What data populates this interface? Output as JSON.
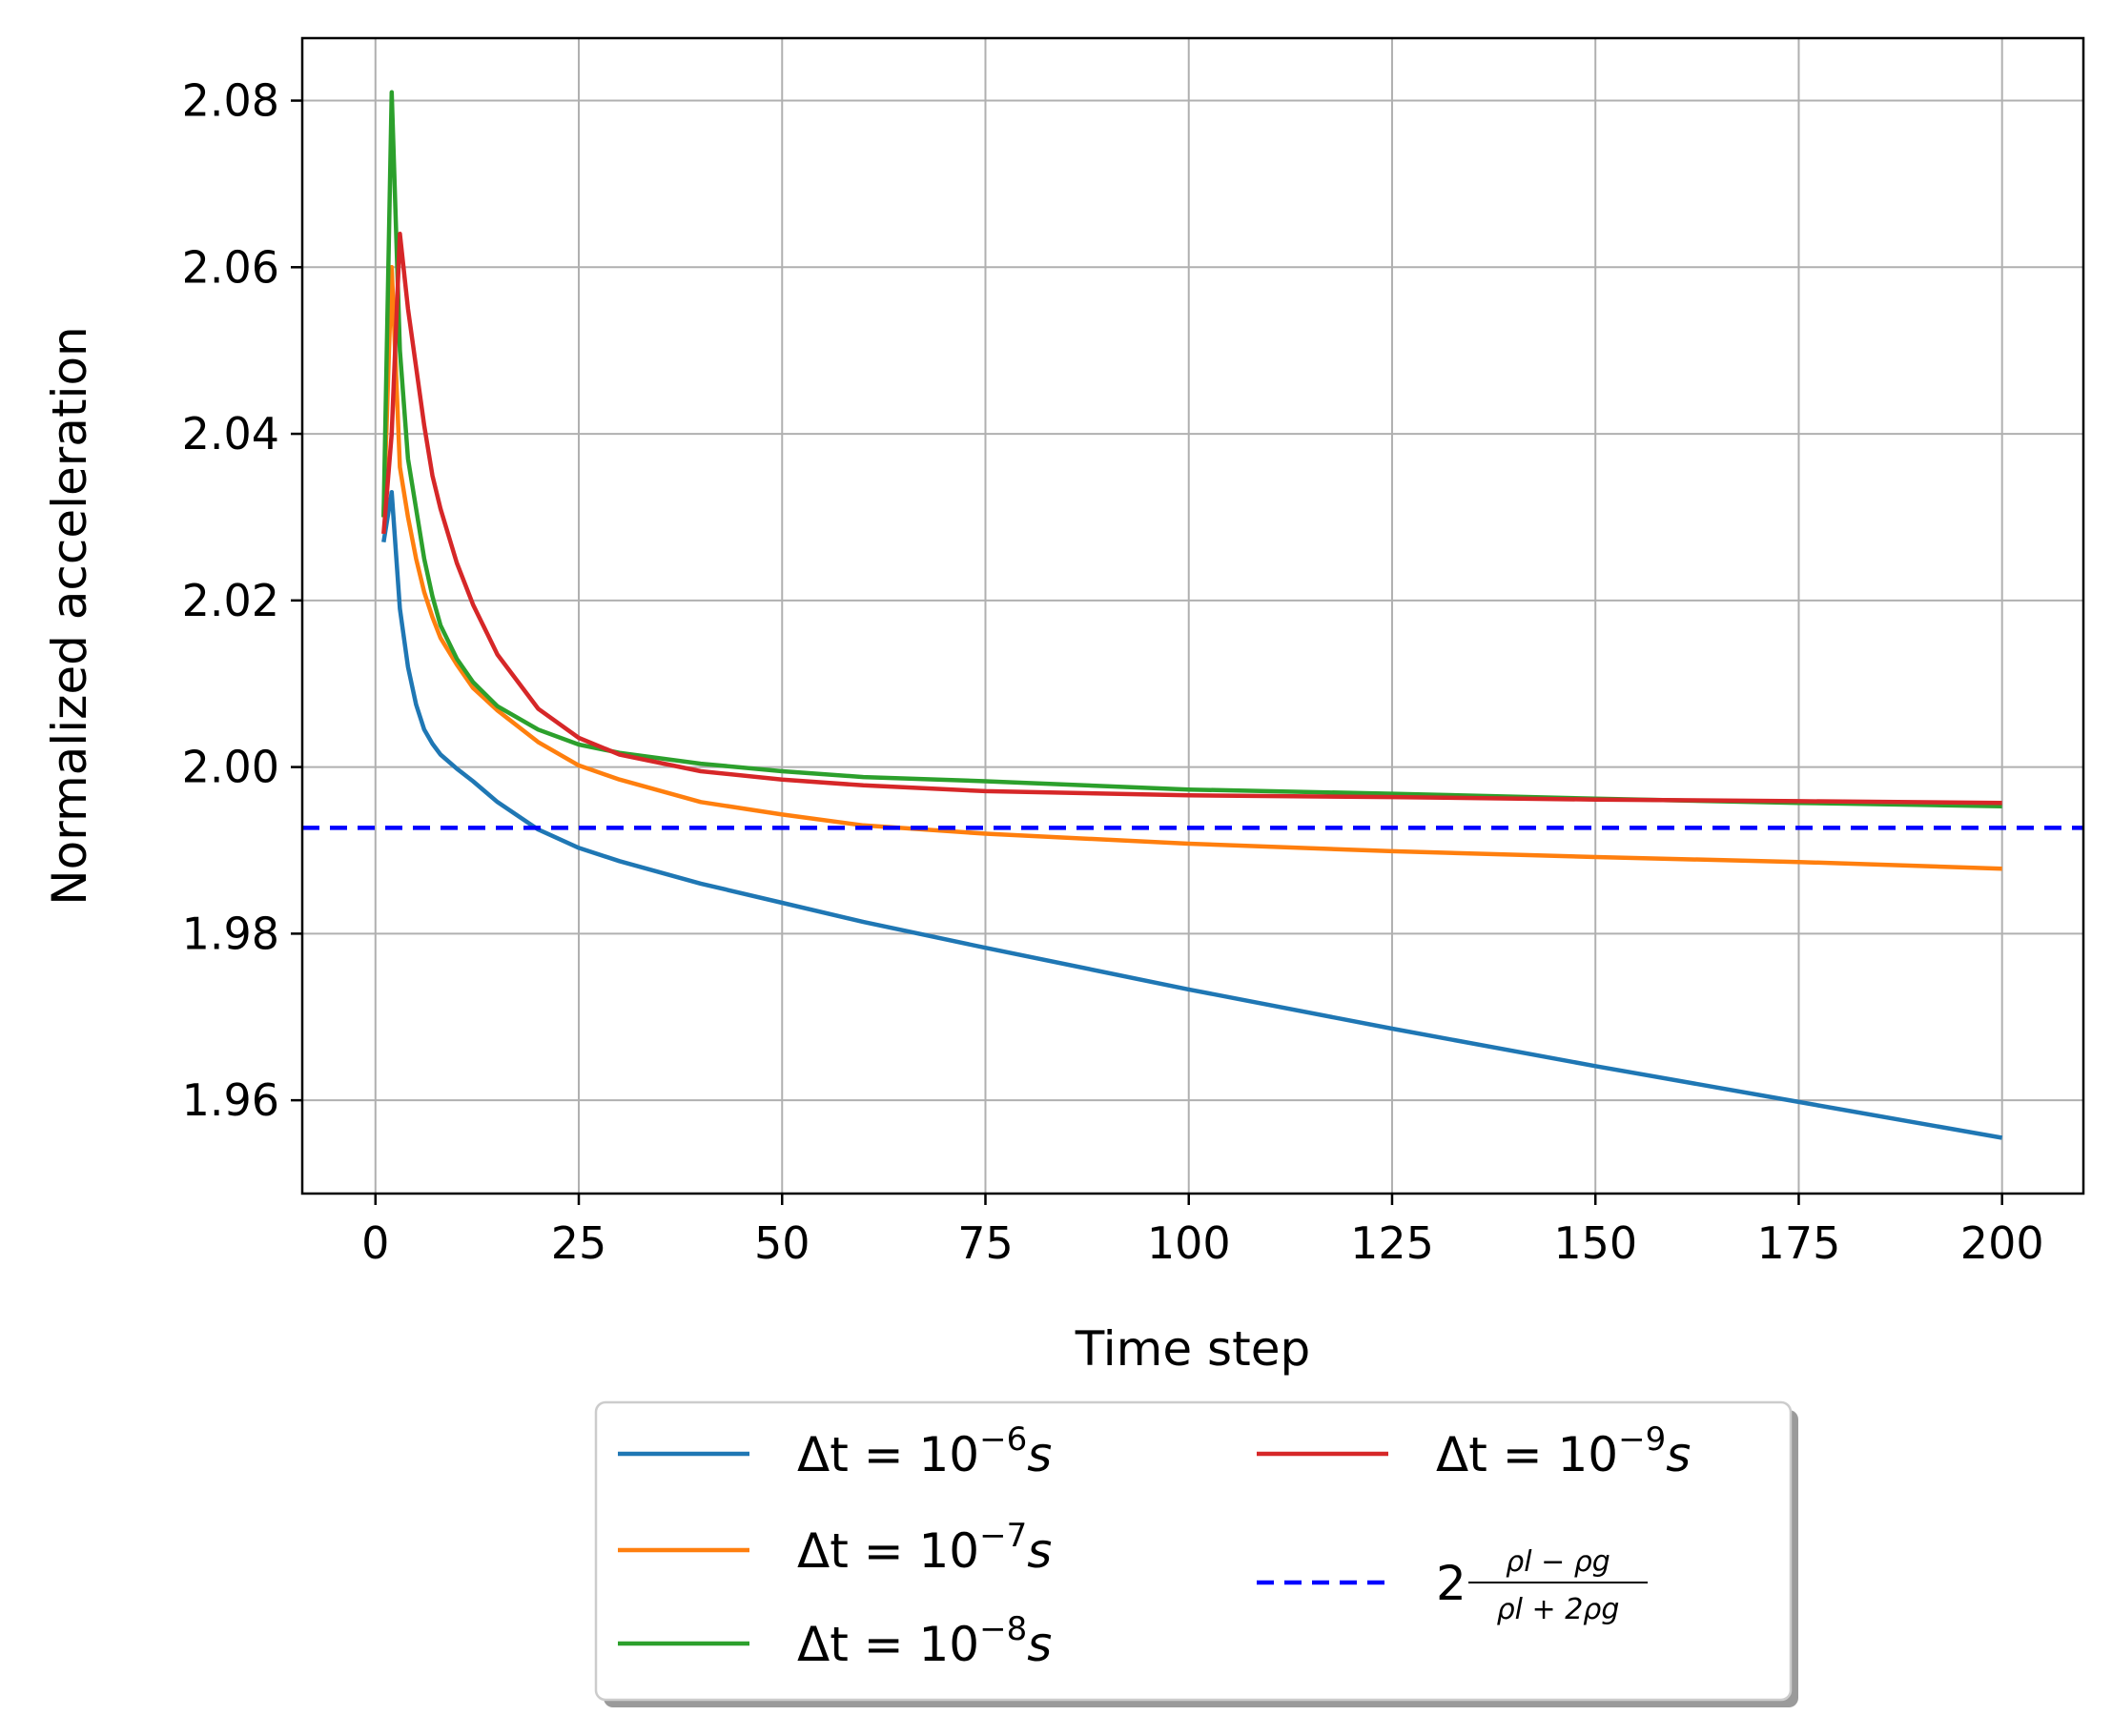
{
  "chart_data": {
    "type": "line",
    "title": "",
    "xlabel": "Time step",
    "ylabel": "Normalized acceleration",
    "xlim": [
      -9,
      210
    ],
    "ylim": [
      1.9488,
      2.0875
    ],
    "xticks": [
      0,
      25,
      50,
      75,
      100,
      125,
      150,
      175,
      200
    ],
    "xtick_labels": [
      "0",
      "25",
      "50",
      "75",
      "100",
      "125",
      "150",
      "175",
      "200"
    ],
    "yticks": [
      1.96,
      1.98,
      2.0,
      2.02,
      2.04,
      2.06,
      2.08
    ],
    "ytick_labels": [
      "1.96",
      "1.98",
      "2.00",
      "2.02",
      "2.04",
      "2.06",
      "2.08"
    ],
    "grid": true,
    "legend_position": "below",
    "series": [
      {
        "legend_label": "Δt = 10^−6 s",
        "legend_prefix": "Δt = 10",
        "legend_exp": "−6",
        "legend_unit": "s",
        "color": "#1f77b4",
        "style": "solid",
        "x": [
          1,
          2,
          3,
          4,
          5,
          6,
          7,
          8,
          10,
          12,
          15,
          20,
          25,
          30,
          40,
          50,
          60,
          75,
          100,
          125,
          150,
          175,
          200
        ],
        "y": [
          2.027,
          2.033,
          2.019,
          2.012,
          2.0075,
          2.0045,
          2.0028,
          2.0015,
          1.9998,
          1.9983,
          1.9958,
          1.9925,
          1.9903,
          1.9887,
          1.986,
          1.9837,
          1.9814,
          1.9783,
          1.9733,
          1.9686,
          1.9641,
          1.9598,
          1.9555
        ]
      },
      {
        "legend_label": "Δt = 10^−7 s",
        "legend_prefix": "Δt = 10",
        "legend_exp": "−7",
        "legend_unit": "s",
        "color": "#ff7f0e",
        "style": "solid",
        "x": [
          1,
          2,
          3,
          4,
          5,
          6,
          7,
          8,
          10,
          12,
          15,
          20,
          25,
          30,
          40,
          50,
          60,
          75,
          100,
          125,
          150,
          175,
          200
        ],
        "y": [
          2.03,
          2.06,
          2.036,
          2.03,
          2.025,
          2.021,
          2.018,
          2.0155,
          2.0123,
          2.0095,
          2.0068,
          2.003,
          2.0002,
          1.9985,
          1.9958,
          1.9943,
          1.993,
          1.992,
          1.9908,
          1.9899,
          1.9892,
          1.9886,
          1.9878
        ]
      },
      {
        "legend_label": "Δt = 10^−8 s",
        "legend_prefix": "Δt = 10",
        "legend_exp": "−8",
        "legend_unit": "s",
        "color": "#2ca02c",
        "style": "solid",
        "x": [
          1,
          2,
          3,
          4,
          5,
          6,
          7,
          8,
          10,
          12,
          15,
          20,
          25,
          30,
          40,
          50,
          60,
          75,
          100,
          125,
          150,
          175,
          200
        ],
        "y": [
          2.03,
          2.081,
          2.05,
          2.037,
          2.031,
          2.025,
          2.0205,
          2.017,
          2.013,
          2.0102,
          2.0073,
          2.0045,
          2.0027,
          2.0017,
          2.0004,
          1.9995,
          1.9988,
          1.9983,
          1.9973,
          1.9968,
          1.9962,
          1.9957,
          1.9953
        ]
      },
      {
        "legend_label": "Δt = 10^−9 s",
        "legend_prefix": "Δt = 10",
        "legend_exp": "−9",
        "legend_unit": "s",
        "color": "#d62728",
        "style": "solid",
        "x": [
          1,
          2,
          3,
          4,
          5,
          6,
          7,
          8,
          10,
          12,
          15,
          20,
          25,
          30,
          40,
          50,
          60,
          75,
          100,
          125,
          150,
          175,
          200
        ],
        "y": [
          2.028,
          2.04,
          2.064,
          2.055,
          2.048,
          2.041,
          2.035,
          2.031,
          2.0245,
          2.0195,
          2.0135,
          2.007,
          2.0035,
          2.0015,
          1.9995,
          1.9985,
          1.9978,
          1.9971,
          1.9966,
          1.9964,
          1.9961,
          1.9959,
          1.9957
        ]
      },
      {
        "legend_label": "2(ρl − ρg)/(ρl + 2ρg)",
        "legend_coef": "2",
        "legend_num": "ρl − ρg",
        "legend_den": "ρl + 2ρg",
        "color": "#0000ff",
        "style": "dashed",
        "hline": 1.9927
      }
    ]
  }
}
